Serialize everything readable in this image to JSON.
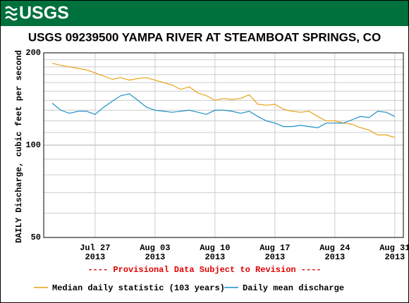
{
  "banner": "USGS",
  "chart_data": {
    "type": "line",
    "title": "USGS 09239500 YAMPA RIVER AT STEAMBOAT SPRINGS, CO",
    "y_label": "DAILY Discharge, cubic feet per second",
    "annotation": "---- Provisional Data Subject to Revision ----",
    "log_y": true,
    "grid": true,
    "legend": "bottom",
    "xlim": [
      "2013-07-21",
      "2013-09-01"
    ],
    "xticks": [
      {
        "value": "2013-07-27",
        "label": "Jul 27",
        "year": "2013"
      },
      {
        "value": "2013-08-03",
        "label": "Aug 03",
        "year": "2013"
      },
      {
        "value": "2013-08-10",
        "label": "Aug 10",
        "year": "2013"
      },
      {
        "value": "2013-08-17",
        "label": "Aug 17",
        "year": "2013"
      },
      {
        "value": "2013-08-24",
        "label": "Aug 24",
        "year": "2013"
      },
      {
        "value": "2013-08-31",
        "label": "Aug 31",
        "year": "2013"
      }
    ],
    "ylim": [
      50,
      200
    ],
    "yticks": [
      50,
      100,
      200
    ],
    "yminor": [
      60,
      70,
      80,
      90,
      110,
      120,
      130,
      140,
      150,
      160,
      170,
      180,
      190
    ],
    "x": [
      "2013-07-22",
      "2013-07-23",
      "2013-07-24",
      "2013-07-25",
      "2013-07-26",
      "2013-07-27",
      "2013-07-28",
      "2013-07-29",
      "2013-07-30",
      "2013-07-31",
      "2013-08-01",
      "2013-08-02",
      "2013-08-03",
      "2013-08-04",
      "2013-08-05",
      "2013-08-06",
      "2013-08-07",
      "2013-08-08",
      "2013-08-09",
      "2013-08-10",
      "2013-08-11",
      "2013-08-12",
      "2013-08-13",
      "2013-08-14",
      "2013-08-15",
      "2013-08-16",
      "2013-08-17",
      "2013-08-18",
      "2013-08-19",
      "2013-08-20",
      "2013-08-21",
      "2013-08-22",
      "2013-08-23",
      "2013-08-24",
      "2013-08-25",
      "2013-08-26",
      "2013-08-27",
      "2013-08-28",
      "2013-08-29",
      "2013-08-30",
      "2013-08-31"
    ],
    "series": [
      {
        "name": "Median daily statistic (103 years)",
        "color": "#e8a317",
        "values": [
          185,
          182,
          180,
          178,
          176,
          172,
          168,
          164,
          166,
          163,
          165,
          166,
          163,
          160,
          157,
          152,
          155,
          148,
          145,
          140,
          142,
          141,
          142,
          146,
          136,
          135,
          136,
          131,
          129,
          128,
          129,
          124,
          120,
          120,
          118,
          117,
          114,
          112,
          108,
          108,
          106
        ]
      },
      {
        "name": "Daily mean discharge",
        "color": "#1f8fc7",
        "values": [
          137,
          130,
          127,
          129,
          129,
          126,
          133,
          139,
          145,
          147,
          140,
          133,
          130,
          129,
          128,
          129,
          130,
          128,
          126,
          130,
          130,
          129,
          127,
          129,
          124,
          120,
          118,
          115,
          115,
          116,
          115,
          114,
          118,
          118,
          118,
          121,
          124,
          123,
          129,
          128,
          124
        ]
      }
    ]
  }
}
